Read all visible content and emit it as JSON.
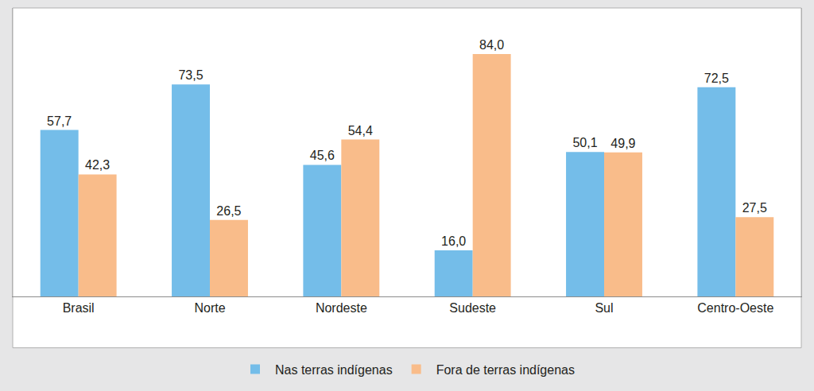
{
  "chart_data": {
    "type": "bar",
    "categories": [
      "Brasil",
      "Norte",
      "Nordeste",
      "Sudeste",
      "Sul",
      "Centro-Oeste"
    ],
    "series": [
      {
        "name": "Nas terras indígenas",
        "color": "#74bde9",
        "values": [
          57.7,
          73.5,
          45.6,
          16.0,
          50.1,
          72.5
        ],
        "value_labels": [
          "57,7",
          "73,5",
          "45,6",
          "16,0",
          "50,1",
          "72,5"
        ]
      },
      {
        "name": "Fora de terras indígenas",
        "color": "#f9bc8a",
        "values": [
          42.3,
          26.5,
          54.4,
          84.0,
          49.9,
          27.5
        ],
        "value_labels": [
          "42,3",
          "26,5",
          "54,4",
          "84,0",
          "49,9",
          "27,5"
        ]
      }
    ],
    "ylim": [
      0,
      100
    ],
    "data_labels": true,
    "tick_labels": "x",
    "grid": false,
    "legend": "bottom"
  }
}
